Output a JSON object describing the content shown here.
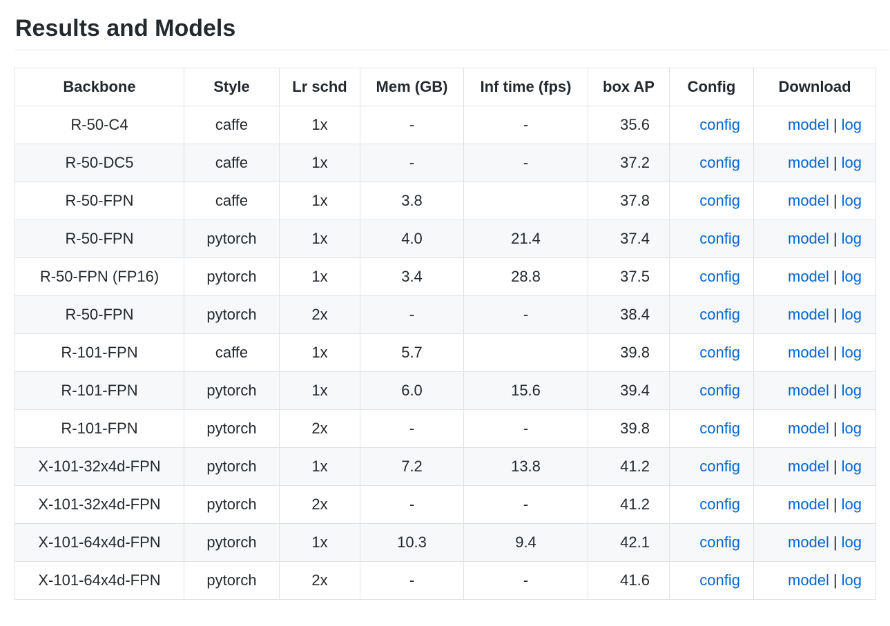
{
  "heading": "Results and Models",
  "table": {
    "headers": [
      "Backbone",
      "Style",
      "Lr schd",
      "Mem (GB)",
      "Inf time (fps)",
      "box AP",
      "Config",
      "Download"
    ],
    "rows": [
      {
        "backbone": "R-50-C4",
        "style": "caffe",
        "lr_schd": "1x",
        "mem": "-",
        "inf_time": "-",
        "box_ap": "35.6",
        "config": "config",
        "model": "model",
        "sep": "|",
        "log": "log"
      },
      {
        "backbone": "R-50-DC5",
        "style": "caffe",
        "lr_schd": "1x",
        "mem": "-",
        "inf_time": "-",
        "box_ap": "37.2",
        "config": "config",
        "model": "model",
        "sep": "|",
        "log": "log"
      },
      {
        "backbone": "R-50-FPN",
        "style": "caffe",
        "lr_schd": "1x",
        "mem": "3.8",
        "inf_time": "",
        "box_ap": "37.8",
        "config": "config",
        "model": "model",
        "sep": "|",
        "log": "log"
      },
      {
        "backbone": "R-50-FPN",
        "style": "pytorch",
        "lr_schd": "1x",
        "mem": "4.0",
        "inf_time": "21.4",
        "box_ap": "37.4",
        "config": "config",
        "model": "model",
        "sep": "|",
        "log": "log"
      },
      {
        "backbone": "R-50-FPN (FP16)",
        "style": "pytorch",
        "lr_schd": "1x",
        "mem": "3.4",
        "inf_time": "28.8",
        "box_ap": "37.5",
        "config": "config",
        "model": "model",
        "sep": "|",
        "log": "log"
      },
      {
        "backbone": "R-50-FPN",
        "style": "pytorch",
        "lr_schd": "2x",
        "mem": "-",
        "inf_time": "-",
        "box_ap": "38.4",
        "config": "config",
        "model": "model",
        "sep": "|",
        "log": "log"
      },
      {
        "backbone": "R-101-FPN",
        "style": "caffe",
        "lr_schd": "1x",
        "mem": "5.7",
        "inf_time": "",
        "box_ap": "39.8",
        "config": "config",
        "model": "model",
        "sep": "|",
        "log": "log"
      },
      {
        "backbone": "R-101-FPN",
        "style": "pytorch",
        "lr_schd": "1x",
        "mem": "6.0",
        "inf_time": "15.6",
        "box_ap": "39.4",
        "config": "config",
        "model": "model",
        "sep": "|",
        "log": "log"
      },
      {
        "backbone": "R-101-FPN",
        "style": "pytorch",
        "lr_schd": "2x",
        "mem": "-",
        "inf_time": "-",
        "box_ap": "39.8",
        "config": "config",
        "model": "model",
        "sep": "|",
        "log": "log"
      },
      {
        "backbone": "X-101-32x4d-FPN",
        "style": "pytorch",
        "lr_schd": "1x",
        "mem": "7.2",
        "inf_time": "13.8",
        "box_ap": "41.2",
        "config": "config",
        "model": "model",
        "sep": "|",
        "log": "log"
      },
      {
        "backbone": "X-101-32x4d-FPN",
        "style": "pytorch",
        "lr_schd": "2x",
        "mem": "-",
        "inf_time": "-",
        "box_ap": "41.2",
        "config": "config",
        "model": "model",
        "sep": "|",
        "log": "log"
      },
      {
        "backbone": "X-101-64x4d-FPN",
        "style": "pytorch",
        "lr_schd": "1x",
        "mem": "10.3",
        "inf_time": "9.4",
        "box_ap": "42.1",
        "config": "config",
        "model": "model",
        "sep": "|",
        "log": "log"
      },
      {
        "backbone": "X-101-64x4d-FPN",
        "style": "pytorch",
        "lr_schd": "2x",
        "mem": "-",
        "inf_time": "-",
        "box_ap": "41.6",
        "config": "config",
        "model": "model",
        "sep": "|",
        "log": "log"
      }
    ]
  },
  "colors": {
    "link": "#0366d6",
    "text": "#24292e",
    "stripe": "#f6f8fa",
    "border": "#dfe2e5"
  }
}
